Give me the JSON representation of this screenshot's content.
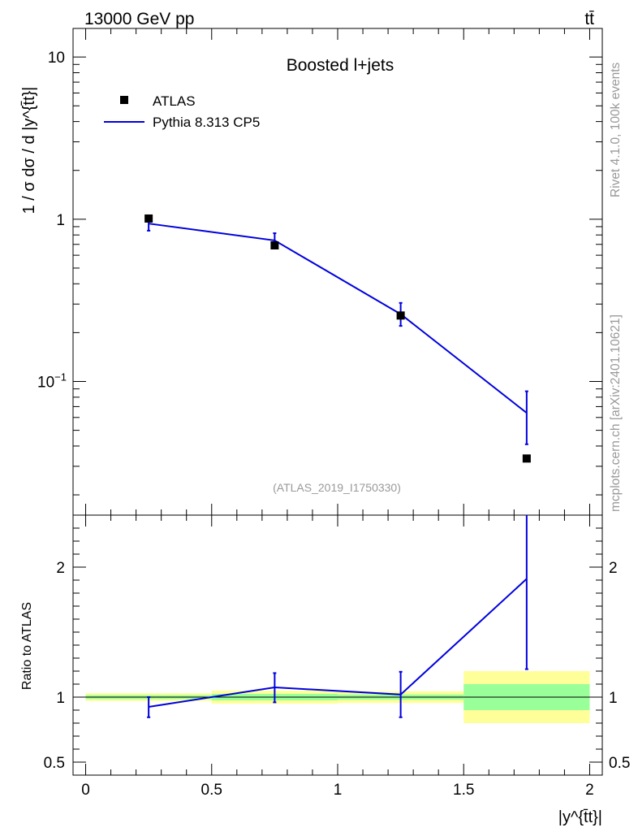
{
  "header": {
    "energy_label": "13000 GeV pp",
    "process_label": "tt̄"
  },
  "side_labels": {
    "rivet": "Rivet 4.1.0,  100k events",
    "source": "mcplots.cern.ch [arXiv:2401.10621]"
  },
  "colors": {
    "mc_line": "#0000dd",
    "data_marker": "#000000",
    "band_inner": "#99ff99",
    "band_outer": "#ffff99",
    "watermark": "#999999"
  },
  "chart_data": {
    "type": "scatter",
    "title": "Boosted l+jets",
    "analysis_tag": "(ATLAS_2019_I1750330)",
    "xlabel": "|y^{t̄t}|",
    "ylabel": "1 / σ dσ / d |y^{t̄t}|",
    "ratio_ylabel": "Ratio to ATLAS",
    "xlim": [
      -0.05,
      2.05
    ],
    "ylim": [
      0.015,
      15
    ],
    "ylog": true,
    "ratio_ylim": [
      0.4,
      2.4
    ],
    "x_ticks": [
      "0",
      "0.5",
      "1",
      "1.5",
      "2"
    ],
    "y_ticks": [
      "10^{-1}",
      "1",
      "10"
    ],
    "ratio_y_ticks": [
      "0.5",
      "1",
      "2"
    ],
    "legend": [
      "ATLAS",
      "Pythia 8.313 CP5"
    ],
    "bins": [
      [
        0.0,
        0.5
      ],
      [
        0.5,
        1.0
      ],
      [
        1.0,
        1.5
      ],
      [
        1.5,
        2.0
      ]
    ],
    "series": [
      {
        "name": "ATLAS",
        "x": [
          0.25,
          0.75,
          1.25,
          1.75
        ],
        "y": [
          1.01,
          0.69,
          0.255,
          0.0335
        ],
        "ratio_band_inner": [
          [
            0.985,
            1.015
          ],
          [
            0.975,
            1.025
          ],
          [
            0.98,
            1.02
          ],
          [
            0.9,
            1.1
          ]
        ],
        "ratio_band_outer": [
          [
            0.97,
            1.03
          ],
          [
            0.95,
            1.05
          ],
          [
            0.955,
            1.045
          ],
          [
            0.8,
            1.2
          ]
        ]
      },
      {
        "name": "Pythia 8.313 CP5",
        "x": [
          0.25,
          0.75,
          1.25,
          1.75
        ],
        "y": [
          0.94,
          0.74,
          0.26,
          0.064
        ],
        "y_err_low": [
          0.85,
          0.67,
          0.22,
          0.041
        ],
        "y_err_high": [
          1.04,
          0.82,
          0.305,
          0.087
        ],
        "ratio": [
          0.925,
          1.075,
          1.02,
          1.91
        ],
        "ratio_err_low": [
          0.845,
          0.96,
          0.845,
          1.215
        ],
        "ratio_err_high": [
          1.0,
          1.185,
          1.195,
          2.4
        ]
      }
    ]
  }
}
